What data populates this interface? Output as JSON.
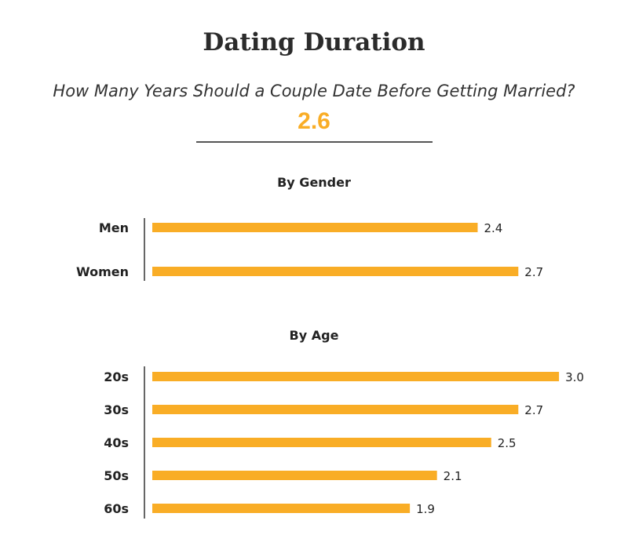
{
  "header": {
    "title": "Dating Duration",
    "subtitle": "How Many Years Should a Couple Date Before Getting Married?",
    "overall_value": "2.6"
  },
  "colors": {
    "bar": "#f9ad26",
    "accent": "#f9ad26",
    "axis": "#333333"
  },
  "chart_data": [
    {
      "type": "bar",
      "orientation": "horizontal",
      "title": "By Gender",
      "categories": [
        "Men",
        "Women"
      ],
      "values": [
        2.4,
        2.7
      ],
      "value_labels": [
        "2.4",
        "2.7"
      ],
      "xlim": [
        0,
        3.0
      ],
      "grid": false
    },
    {
      "type": "bar",
      "orientation": "horizontal",
      "title": "By Age",
      "categories": [
        "20s",
        "30s",
        "40s",
        "50s",
        "60s"
      ],
      "values": [
        3.0,
        2.7,
        2.5,
        2.1,
        1.9
      ],
      "value_labels": [
        "3.0",
        "2.7",
        "2.5",
        "2.1",
        "1.9"
      ],
      "xlim": [
        0,
        3.0
      ],
      "grid": false
    }
  ]
}
